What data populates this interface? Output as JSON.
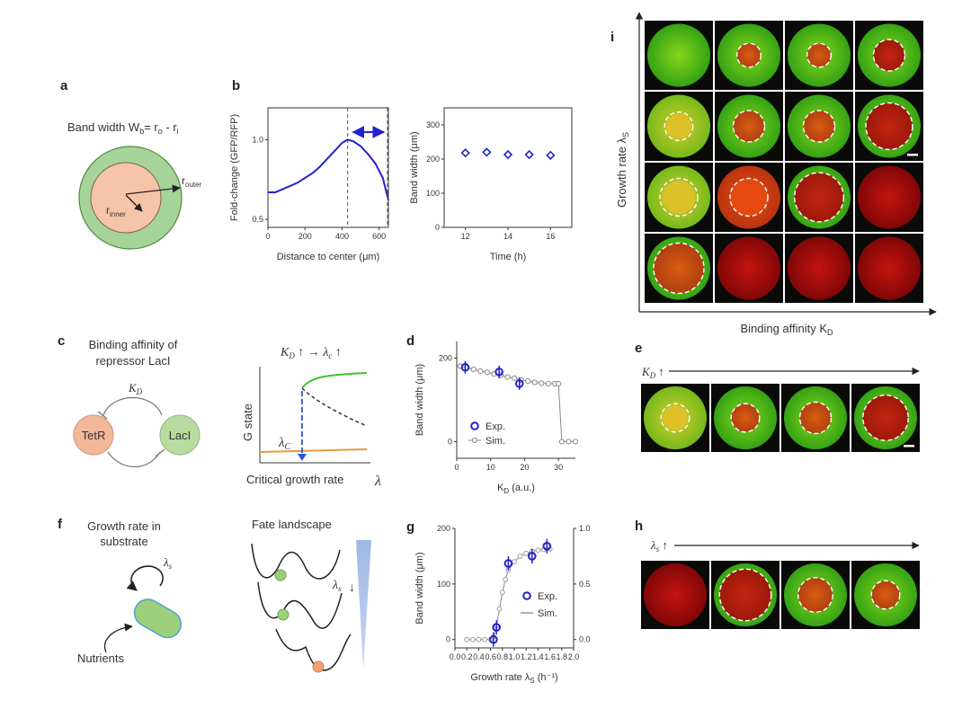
{
  "panel_labels": {
    "a": "a",
    "b": "b",
    "c": "c",
    "d": "d",
    "e": "e",
    "f": "f",
    "g": "g",
    "h": "h",
    "i": "i"
  },
  "panel_a": {
    "title": "Band width W",
    "title_sub": "b",
    "title_eq": "= r",
    "title_o": "o",
    "title_minus": " - r",
    "title_i": "i",
    "r_outer": "r",
    "r_outer_sub": "outer",
    "r_inner": "r",
    "r_inner_sub": "inner"
  },
  "panel_c": {
    "title_line1": "Binding affinity of",
    "title_line2": "repressor LacI",
    "kd": "K",
    "kd_sub": "D",
    "tetr": "TetR",
    "laci": "LacI"
  },
  "panel_c_bif": {
    "top_eq": "K",
    "top_eq_sub": "D",
    "top_eq_rest": " ↑ → λ",
    "top_eq_c": "c",
    "top_eq_end": " ↑",
    "ylabel": "G state",
    "xlabel": "Critical growth rate",
    "x_symbol": "λ",
    "lambda_c": "λ",
    "lambda_c_sub": "C"
  },
  "panel_e": {
    "arrow_label": "K",
    "arrow_sub": "D",
    "arrow_end": " ↑"
  },
  "panel_f": {
    "title_line1": "Growth rate in",
    "title_line2": "substrate",
    "lambda_s": "λ",
    "lambda_s_sub": "s",
    "nutrients": "Nutrients",
    "landscape_title": "Fate landscape",
    "landscape_lambda": "λ",
    "landscape_lambda_sub": "s",
    "landscape_arrow": "↓"
  },
  "panel_h": {
    "arrow_label": "λ",
    "arrow_sub": "s",
    "arrow_end": " ↑"
  },
  "panel_i": {
    "ylabel": "Growth rate λ",
    "ylabel_sub": "S",
    "xlabel": "Binding affinity K",
    "xlabel_sub": "D"
  },
  "colors": {
    "blue": "#2222cc",
    "green": "#22bb22",
    "orange": "#e89a3c",
    "grey": "#999999",
    "red": "#d01010"
  },
  "chart_data": [
    {
      "id": "b-left",
      "type": "line",
      "xlabel": "Distance to center (μm)",
      "ylabel": "Fold-change (GFP/RFP)",
      "xlim": [
        0,
        650
      ],
      "ylim": [
        0.45,
        1.2
      ],
      "xticks": [
        "0",
        "200",
        "400",
        "600"
      ],
      "yticks": [
        "0.5",
        "1.0"
      ],
      "x": [
        0,
        40,
        80,
        120,
        160,
        200,
        240,
        280,
        320,
        360,
        400,
        430,
        460,
        500,
        540,
        580,
        620,
        650
      ],
      "series": [
        {
          "values": [
            0.67,
            0.67,
            0.69,
            0.71,
            0.73,
            0.76,
            0.79,
            0.83,
            0.88,
            0.93,
            0.98,
            1.0,
            0.99,
            0.96,
            0.91,
            0.85,
            0.76,
            0.62
          ]
        }
      ]
    },
    {
      "id": "b-right",
      "type": "scatter",
      "xlabel": "Time (h)",
      "ylabel": "Band width (μm)",
      "xlim": [
        11,
        17
      ],
      "ylim": [
        0,
        350
      ],
      "xticks": [
        "12",
        "14",
        "16"
      ],
      "yticks": [
        "0",
        "100",
        "200",
        "300"
      ],
      "x": [
        12,
        13,
        14,
        15,
        16
      ],
      "series": [
        {
          "values": [
            218,
            220,
            213,
            213,
            211
          ]
        }
      ]
    },
    {
      "id": "d",
      "type": "scatter",
      "xlabel": "K",
      "xlabel_sub": "D",
      "xlabel_unit": " (a.u.)",
      "ylabel": "Band width (μm)",
      "xlim": [
        0,
        35
      ],
      "ylim": [
        -40,
        240
      ],
      "xticks": [
        "0",
        "10",
        "20",
        "30"
      ],
      "yticks": [
        "0",
        "200"
      ],
      "legend": [
        "Exp.",
        "Sim."
      ],
      "series": [
        {
          "name": "Exp.",
          "x": [
            2.5,
            12.5,
            18.5
          ],
          "values": [
            178,
            167,
            139
          ]
        },
        {
          "name": "Sim.",
          "x": [
            1,
            3,
            5,
            7,
            9,
            11,
            13,
            15,
            17,
            19,
            21,
            23,
            25,
            27,
            29,
            30,
            31,
            33,
            35
          ],
          "values": [
            181,
            177,
            173,
            169,
            166,
            162,
            159,
            155,
            152,
            148,
            145,
            142,
            140,
            139,
            139,
            139,
            0,
            0,
            0
          ]
        }
      ]
    },
    {
      "id": "g",
      "type": "scatter",
      "xlabel": "Growth rate λ",
      "xlabel_sub": "S",
      "xlabel_unit": " (h⁻¹)",
      "ylabel": "Band width (μm)",
      "xlim": [
        0,
        2.0
      ],
      "ylim": [
        -15,
        200
      ],
      "ylim_right": [
        -0.075,
        1.0
      ],
      "xticks": [
        "0.0",
        "0.2",
        "0.4",
        "0.6",
        "0.8",
        "1.0",
        "1.2",
        "1.4",
        "1.6",
        "1.8",
        "2.0"
      ],
      "yticks": [
        "0",
        "100",
        "200"
      ],
      "yticks_right": [
        "0.0",
        "0.5",
        "1.0"
      ],
      "legend": [
        "Exp.",
        "Sim."
      ],
      "series": [
        {
          "name": "Exp.",
          "x": [
            0.65,
            0.7,
            0.9,
            1.3,
            1.55
          ],
          "values": [
            0,
            22,
            137,
            150,
            168
          ]
        },
        {
          "name": "Sim.",
          "x": [
            0.2,
            0.3,
            0.4,
            0.5,
            0.6,
            0.65,
            0.7,
            0.75,
            0.8,
            0.85,
            0.9,
            1.0,
            1.1,
            1.2,
            1.3,
            1.4,
            1.5,
            1.6
          ],
          "values": [
            0,
            0,
            0,
            0,
            0,
            5,
            25,
            55,
            85,
            108,
            125,
            140,
            150,
            155,
            159,
            161,
            162,
            163
          ]
        }
      ]
    }
  ]
}
